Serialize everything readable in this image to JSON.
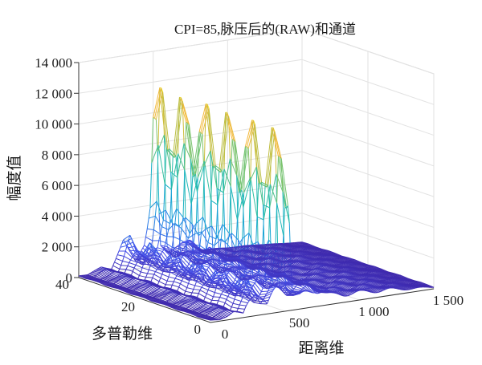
{
  "chart_data": {
    "type": "surface",
    "title": "CPI=85,脉压后的(RAW)和通道",
    "xlabel": "距离维",
    "ylabel": "多普勒维",
    "zlabel": "幅度值",
    "x_ticks": [
      {
        "value": 0,
        "label": "0"
      },
      {
        "value": 500,
        "label": "500"
      },
      {
        "value": 1000,
        "label": "1 000"
      },
      {
        "value": 1500,
        "label": "1 500"
      }
    ],
    "y_ticks": [
      {
        "value": 0,
        "label": "0"
      },
      {
        "value": 20,
        "label": "20"
      },
      {
        "value": 40,
        "label": "40"
      }
    ],
    "z_ticks": [
      {
        "value": 0,
        "label": "0"
      },
      {
        "value": 2000,
        "label": "2 000"
      },
      {
        "value": 4000,
        "label": "4 000"
      },
      {
        "value": 6000,
        "label": "6 000"
      },
      {
        "value": 8000,
        "label": "8 000"
      },
      {
        "value": 10000,
        "label": "10 000"
      },
      {
        "value": 12000,
        "label": "12 000"
      },
      {
        "value": 14000,
        "label": "14 000"
      }
    ],
    "xlim": [
      0,
      1500
    ],
    "ylim": [
      0,
      40
    ],
    "zlim": [
      0,
      14000
    ],
    "grid": true,
    "colormap": "parula",
    "range_profile": [
      {
        "x": 0,
        "z": 150
      },
      {
        "x": 60,
        "z": 120
      },
      {
        "x": 150,
        "z": 600
      },
      {
        "x": 220,
        "z": 300
      },
      {
        "x": 300,
        "z": 2500
      },
      {
        "x": 380,
        "z": 700
      },
      {
        "x": 420,
        "z": 1500
      },
      {
        "x": 440,
        "z": 1900
      },
      {
        "x": 460,
        "z": 3200
      },
      {
        "x": 480,
        "z": 4800
      },
      {
        "x": 500,
        "z": 12000
      },
      {
        "x": 525,
        "z": 11800
      },
      {
        "x": 545,
        "z": 1700
      },
      {
        "x": 600,
        "z": 1000
      },
      {
        "x": 700,
        "z": 1600
      },
      {
        "x": 820,
        "z": 800
      },
      {
        "x": 900,
        "z": 700
      },
      {
        "x": 1050,
        "z": 600
      },
      {
        "x": 1200,
        "z": 500
      },
      {
        "x": 1350,
        "z": 300
      },
      {
        "x": 1500,
        "z": 150
      }
    ]
  }
}
